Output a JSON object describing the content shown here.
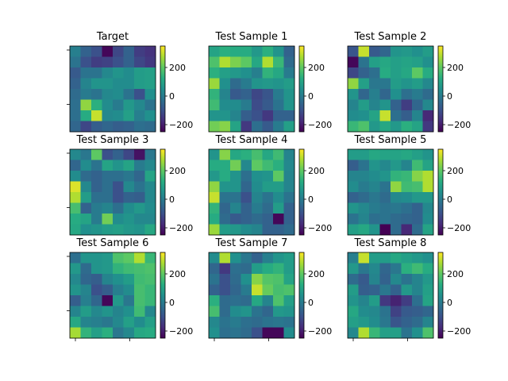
{
  "chart_data": {
    "type": "heatmap",
    "colormap": "viridis",
    "color_range": [
      -250,
      350
    ],
    "colorbar_ticks": [
      200,
      0,
      -200
    ],
    "colorbar_tick_labels": [
      "200",
      "0",
      "−200"
    ],
    "grid_size": [
      8,
      8
    ],
    "panels": [
      {
        "title": "Target",
        "values": [
          [
            10,
            -60,
            -100,
            -240,
            -120,
            -60,
            -140,
            -160
          ],
          [
            -20,
            -100,
            -140,
            -130,
            -100,
            -60,
            -120,
            -150
          ],
          [
            -80,
            -20,
            -20,
            30,
            60,
            40,
            80,
            90
          ],
          [
            -60,
            20,
            60,
            60,
            40,
            40,
            80,
            90
          ],
          [
            -40,
            0,
            -20,
            30,
            40,
            -20,
            -100,
            50
          ],
          [
            -30,
            250,
            130,
            40,
            0,
            70,
            30,
            -20
          ],
          [
            -30,
            120,
            300,
            30,
            40,
            90,
            10,
            50
          ],
          [
            -50,
            -120,
            -70,
            -50,
            -70,
            -60,
            -30,
            -40
          ]
        ]
      },
      {
        "title": "Test Sample 1",
        "values": [
          [
            100,
            130,
            120,
            120,
            70,
            130,
            60,
            -60
          ],
          [
            180,
            280,
            230,
            200,
            110,
            280,
            150,
            -40
          ],
          [
            130,
            90,
            70,
            50,
            10,
            140,
            110,
            0
          ],
          [
            260,
            50,
            -40,
            0,
            60,
            70,
            60,
            80
          ],
          [
            140,
            20,
            -80,
            -60,
            -120,
            -90,
            0,
            60
          ],
          [
            160,
            40,
            40,
            0,
            -110,
            -80,
            -20,
            60
          ],
          [
            60,
            60,
            20,
            -70,
            -100,
            -150,
            -60,
            -60
          ],
          [
            220,
            240,
            100,
            -150,
            -30,
            -80,
            0,
            90
          ]
        ]
      },
      {
        "title": "Test Sample 2",
        "values": [
          [
            -90,
            300,
            -80,
            -50,
            60,
            70,
            50,
            80
          ],
          [
            -240,
            -20,
            90,
            110,
            90,
            100,
            90,
            50
          ],
          [
            -120,
            -60,
            -30,
            120,
            90,
            110,
            200,
            120
          ],
          [
            250,
            90,
            -10,
            -10,
            80,
            60,
            80,
            30
          ],
          [
            60,
            -50,
            10,
            -50,
            50,
            -30,
            0,
            -40
          ],
          [
            20,
            80,
            20,
            60,
            -60,
            -140,
            -50,
            30
          ],
          [
            40,
            50,
            100,
            300,
            -30,
            -70,
            20,
            -180
          ],
          [
            150,
            180,
            70,
            110,
            70,
            130,
            100,
            -150
          ]
        ]
      },
      {
        "title": "Test Sample 3",
        "values": [
          [
            30,
            -10,
            200,
            -100,
            -60,
            -120,
            -220,
            -10
          ],
          [
            -50,
            40,
            -20,
            100,
            60,
            100,
            0,
            30
          ],
          [
            40,
            -40,
            -60,
            -30,
            -30,
            -10,
            -50,
            100
          ],
          [
            320,
            30,
            -60,
            -30,
            -100,
            30,
            -20,
            30
          ],
          [
            280,
            80,
            -30,
            -30,
            -100,
            -60,
            -70,
            30
          ],
          [
            170,
            -60,
            0,
            20,
            -30,
            40,
            70,
            40
          ],
          [
            120,
            100,
            0,
            220,
            40,
            60,
            30,
            30
          ],
          [
            110,
            50,
            60,
            80,
            90,
            70,
            60,
            110
          ]
        ]
      },
      {
        "title": "Test Sample 4",
        "values": [
          [
            60,
            240,
            110,
            130,
            170,
            110,
            160,
            20
          ],
          [
            120,
            120,
            220,
            30,
            200,
            160,
            130,
            30
          ],
          [
            70,
            120,
            60,
            -30,
            50,
            60,
            200,
            20
          ],
          [
            250,
            60,
            60,
            -50,
            40,
            80,
            80,
            20
          ],
          [
            300,
            -20,
            -20,
            -100,
            20,
            -20,
            40,
            -20
          ],
          [
            140,
            -50,
            20,
            -60,
            0,
            -40,
            80,
            -60
          ],
          [
            120,
            -40,
            -80,
            -60,
            -40,
            -60,
            -240,
            -60
          ],
          [
            260,
            80,
            70,
            40,
            20,
            -60,
            -60,
            -40
          ]
        ]
      },
      {
        "title": "Test Sample 5",
        "values": [
          [
            80,
            80,
            110,
            100,
            100,
            110,
            90,
            60
          ],
          [
            -70,
            -20,
            60,
            30,
            70,
            20,
            160,
            100
          ],
          [
            20,
            20,
            40,
            60,
            140,
            150,
            240,
            280
          ],
          [
            40,
            0,
            20,
            -20,
            250,
            160,
            170,
            280
          ],
          [
            -60,
            -40,
            -10,
            -40,
            30,
            40,
            70,
            70
          ],
          [
            60,
            30,
            0,
            -20,
            -10,
            -30,
            -60,
            30
          ],
          [
            -20,
            20,
            -30,
            -20,
            -40,
            -50,
            -60,
            40
          ],
          [
            90,
            110,
            60,
            -260,
            -40,
            -180,
            -40,
            100
          ]
        ]
      },
      {
        "title": "Test Sample 6",
        "values": [
          [
            -30,
            60,
            60,
            70,
            180,
            200,
            280,
            150
          ],
          [
            70,
            -40,
            60,
            70,
            140,
            160,
            170,
            180
          ],
          [
            30,
            -50,
            -70,
            20,
            50,
            80,
            160,
            170
          ],
          [
            60,
            20,
            -100,
            -70,
            10,
            40,
            170,
            150
          ],
          [
            -70,
            10,
            -50,
            -240,
            70,
            -10,
            170,
            150
          ],
          [
            20,
            80,
            30,
            60,
            20,
            50,
            160,
            30
          ],
          [
            110,
            20,
            10,
            -10,
            30,
            90,
            40,
            90
          ],
          [
            270,
            140,
            90,
            130,
            -10,
            30,
            110,
            120
          ]
        ]
      },
      {
        "title": "Test Sample 7",
        "values": [
          [
            40,
            280,
            50,
            -10,
            -60,
            10,
            60,
            80
          ],
          [
            -50,
            -150,
            -30,
            -40,
            80,
            120,
            140,
            80
          ],
          [
            -20,
            -100,
            -40,
            50,
            240,
            190,
            180,
            100
          ],
          [
            -60,
            -100,
            -50,
            0,
            300,
            210,
            170,
            180
          ],
          [
            130,
            -40,
            -30,
            -40,
            110,
            20,
            180,
            90
          ],
          [
            170,
            -40,
            40,
            60,
            -20,
            -50,
            70,
            60
          ],
          [
            30,
            -20,
            0,
            -30,
            -40,
            -20,
            -10,
            -20
          ],
          [
            50,
            -30,
            -20,
            -40,
            -100,
            -240,
            -240,
            40
          ]
        ]
      },
      {
        "title": "Test Sample 8",
        "values": [
          [
            10,
            300,
            80,
            80,
            110,
            90,
            70,
            50
          ],
          [
            70,
            -10,
            30,
            -50,
            -10,
            130,
            160,
            120
          ],
          [
            -40,
            -80,
            20,
            -60,
            30,
            -20,
            20,
            70
          ],
          [
            80,
            -70,
            -60,
            -10,
            -60,
            70,
            20,
            90
          ],
          [
            60,
            20,
            80,
            -150,
            -190,
            -140,
            -30,
            100
          ],
          [
            110,
            40,
            30,
            -20,
            -130,
            -80,
            -70,
            -50
          ],
          [
            90,
            70,
            40,
            -10,
            -90,
            -60,
            -40,
            20
          ],
          [
            30,
            280,
            150,
            90,
            90,
            -20,
            50,
            180
          ]
        ]
      }
    ]
  }
}
